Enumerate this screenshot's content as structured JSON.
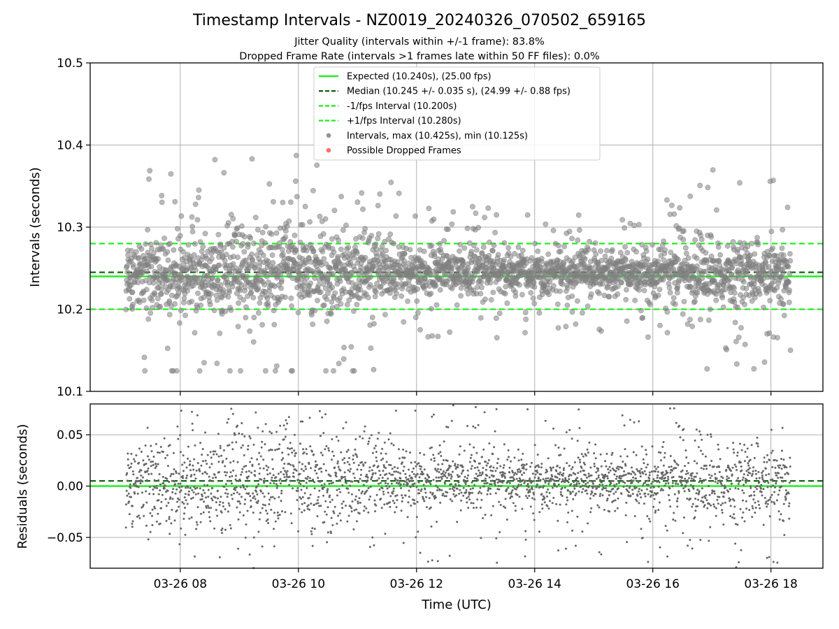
{
  "chart_data": {
    "title": "Timestamp Intervals - NZ0019_20240326_070502_659165",
    "subtitle_lines": [
      "Jitter Quality (intervals within +/-1 frame): 83.8%",
      "Dropped Frame Rate (intervals >1 frames late within 50 FF files): 0.0%"
    ],
    "xlabel": "Time (UTC)",
    "x_tick_labels": [
      "03-26 08",
      "03-26 10",
      "03-26 12",
      "03-26 14",
      "03-26 16",
      "03-26 18"
    ],
    "x_tick_hours": [
      8,
      10,
      12,
      14,
      16,
      18
    ],
    "x_range_hours": [
      6.475,
      18.88
    ],
    "data_time_range_hours": [
      7.08,
      18.33
    ],
    "grid": true,
    "legend_position": "top-center",
    "colors": {
      "expected": "#22ee22",
      "median": "#116611",
      "bounds": "#22ee22",
      "points": "#808080",
      "dropped": "#ff5555"
    },
    "top_panel": {
      "type": "scatter",
      "ylabel": "Intervals (seconds)",
      "ylim": [
        10.1,
        10.5
      ],
      "y_ticks": [
        "10.1",
        "10.2",
        "10.3",
        "10.4",
        "10.5"
      ],
      "expected": 10.24,
      "median": 10.245,
      "lower": 10.2,
      "upper": 10.28,
      "max": 10.425,
      "min": 10.125,
      "legend": [
        {
          "label": "Expected (10.240s), (25.00 fps)",
          "style": "solid",
          "color": "#22ee22"
        },
        {
          "label": "Median (10.245 +/- 0.035 s), (24.99 +/- 0.88 fps)",
          "style": "dashed",
          "color": "#116611"
        },
        {
          "label": "-1/fps Interval (10.200s)",
          "style": "dashed",
          "color": "#22ee22"
        },
        {
          "label": "+1/fps Interval (10.280s)",
          "style": "dashed",
          "color": "#22ee22"
        },
        {
          "label": "Intervals, max (10.425s), min (10.125s)",
          "style": "marker",
          "color": "#808080"
        },
        {
          "label": "Possible Dropped Frames",
          "style": "marker",
          "color": "#ff5555"
        }
      ]
    },
    "bottom_panel": {
      "type": "scatter",
      "ylabel": "Residuals (seconds)",
      "ylim": [
        -0.08,
        0.08
      ],
      "y_ticks": [
        "−0.05",
        "0.00",
        "0.05"
      ],
      "y_tick_values": [
        -0.05,
        0,
        0.05
      ],
      "zero": 0,
      "median": 0.005
    },
    "series_envelope": [
      {
        "t": 7.1,
        "spread": 0.035
      },
      {
        "t": 8.0,
        "spread": 0.045
      },
      {
        "t": 9.0,
        "spread": 0.05
      },
      {
        "t": 10.0,
        "spread": 0.05
      },
      {
        "t": 11.0,
        "spread": 0.04
      },
      {
        "t": 12.0,
        "spread": 0.03
      },
      {
        "t": 13.0,
        "spread": 0.025
      },
      {
        "t": 14.0,
        "spread": 0.025
      },
      {
        "t": 15.0,
        "spread": 0.022
      },
      {
        "t": 16.0,
        "spread": 0.025
      },
      {
        "t": 17.0,
        "spread": 0.04
      },
      {
        "t": 18.3,
        "spread": 0.035
      }
    ]
  }
}
